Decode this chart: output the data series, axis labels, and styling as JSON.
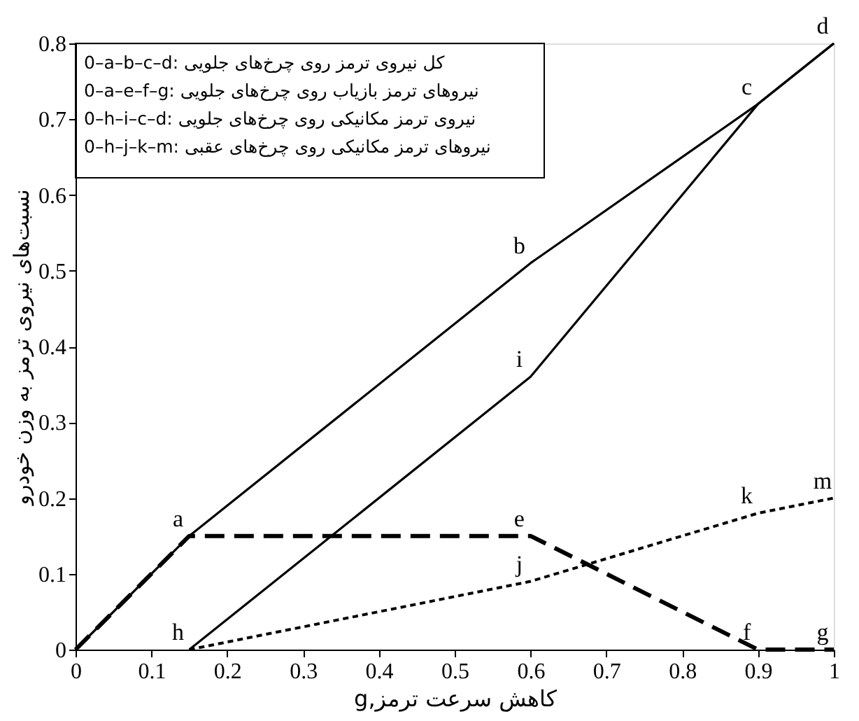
{
  "chart_data": {
    "type": "line",
    "xlabel": "g,کاهش سرعت ترمز",
    "ylabel": "نسبت‌های نیروی ترمز به وزن خودرو",
    "xlim": [
      0,
      1
    ],
    "xticks": [
      0,
      0.1,
      0.2,
      0.3,
      0.4,
      0.5,
      0.6,
      0.7,
      0.8,
      0.9,
      1
    ],
    "ylim": [
      0,
      0.8
    ],
    "yticks": [
      0,
      0.1,
      0.2,
      0.3,
      0.4,
      0.5,
      0.6,
      0.7,
      0.8
    ],
    "grid": false,
    "marker": "none",
    "series": [
      {
        "color": "#000000",
        "line_style": "solid",
        "x": [
          0,
          0.15,
          0.6,
          0.9,
          1
        ],
        "values": [
          0,
          0.15,
          0.51,
          0.72,
          0.8
        ]
      },
      {
        "color": "#000000",
        "line_style": "dashed",
        "x": [
          0,
          0.15,
          0.6,
          0.9,
          1
        ],
        "values": [
          0,
          0.15,
          0.15,
          0,
          0
        ]
      },
      {
        "color": "#000000",
        "line_style": "solid",
        "x": [
          0.15,
          0.6,
          0.9,
          1
        ],
        "values": [
          0,
          0.36,
          0.72,
          0.8
        ]
      },
      {
        "color": "#000000",
        "line_style": "dotted",
        "x": [
          0.15,
          0.4,
          0.6,
          0.9,
          1
        ],
        "values": [
          0,
          0.05,
          0.09,
          0.18,
          0.2
        ]
      }
    ],
    "annotations": [
      "0–a–b–c–d: کل نیروی ترمز روی چرخ‌های جلویی",
      "0–a–e–f–g: نیروهای ترمز بازیاب روی چرخ‌های جلویی",
      "0–h–i–c–d: نیروی ترمز مکانیکی روی چرخ‌های جلویی",
      "0–h–j–k–m: نیروهای ترمز مکانیکی روی چرخ‌های عقبی",
      {
        "text": "a",
        "x": 0.15,
        "y": 0.15
      },
      {
        "text": "b",
        "x": 0.6,
        "y": 0.51
      },
      {
        "text": "c",
        "x": 0.9,
        "y": 0.72
      },
      {
        "text": "d",
        "x": 1,
        "y": 0.8
      },
      {
        "text": "e",
        "x": 0.6,
        "y": 0.15
      },
      {
        "text": "f",
        "x": 0.9,
        "y": 0
      },
      {
        "text": "g",
        "x": 1,
        "y": 0
      },
      {
        "text": "h",
        "x": 0.15,
        "y": 0
      },
      {
        "text": "i",
        "x": 0.6,
        "y": 0.36
      },
      {
        "text": "j",
        "x": 0.6,
        "y": 0.09
      },
      {
        "text": "k",
        "x": 0.9,
        "y": 0.18
      },
      {
        "text": "m",
        "x": 1,
        "y": 0.2
      }
    ]
  }
}
